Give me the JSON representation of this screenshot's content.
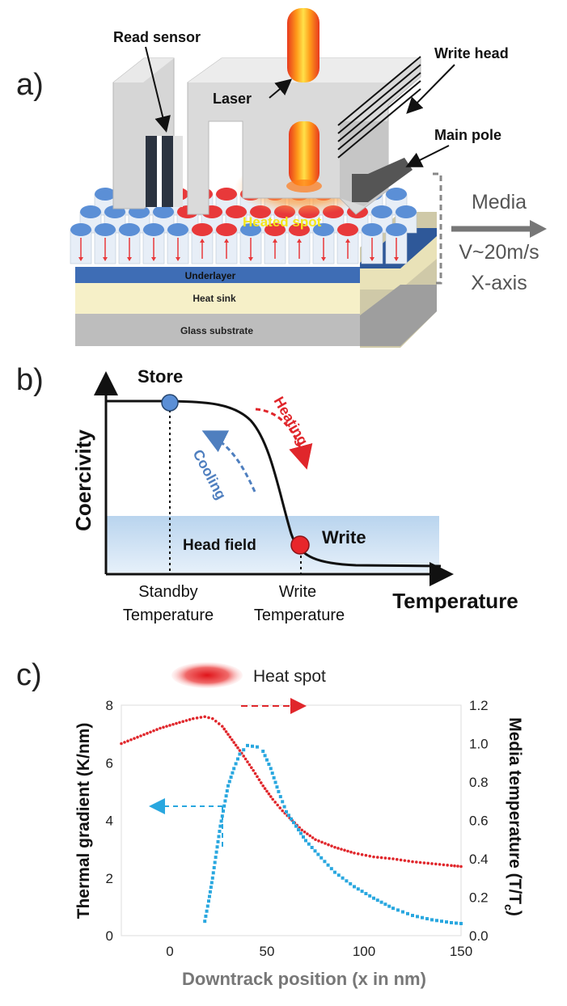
{
  "panel_a": {
    "letter": "a)",
    "read_sensor": "Read sensor",
    "laser": "Laser",
    "write_head": "Write head",
    "main_pole": "Main pole",
    "heated_spot": "Heated spot",
    "underlayer": "Underlayer",
    "heat_sink": "Heat sink",
    "glass_substrate": "Glass substrate",
    "media": "Media",
    "velocity": "V~20m/s",
    "axis": "X-axis",
    "colors": {
      "hot": "#e8393a",
      "cold": "#5b8fd6",
      "underlayer": "#3e6db5",
      "heat_sink": "#f6f0c8",
      "glass": "#bdbdbd"
    }
  },
  "panel_b": {
    "letter": "b)",
    "store": "Store",
    "heating": "Heating",
    "cooling": "Cooling",
    "head_field": "Head field",
    "write": "Write",
    "standby_line1": "Standby",
    "standby_line2": "Temperature",
    "write_temp_line1": "Write",
    "write_temp_line2": "Temperature",
    "xlabel": "Temperature",
    "ylabel": "Coercivity",
    "colors": {
      "heating": "#e0262b",
      "cooling": "#4f7fbf",
      "store_dot": "#5b8fd6",
      "write_dot": "#e8262b",
      "field_band": "#cfe1f3"
    }
  },
  "panel_c": {
    "letter": "c)",
    "legend_label": "Heat spot",
    "chart_data": {
      "type": "scatter",
      "xlabel": "Downtrack position (x in nm)",
      "ylabel": "Thermal gradient (K/nm)",
      "y2label": "Media temperature (T/T",
      "y2label_sub": "c",
      "y2label_close": ")",
      "xlim": [
        -25,
        150
      ],
      "ylim": [
        0,
        8
      ],
      "y2lim": [
        0,
        1.2
      ],
      "x_ticks": [
        "0",
        "50",
        "100",
        "150"
      ],
      "y_ticks": [
        "0",
        "2",
        "4",
        "6",
        "8"
      ],
      "y2_ticks": [
        "0.0",
        "0.2",
        "0.4",
        "0.6",
        "0.8",
        "1.0",
        "1.2"
      ],
      "series": [
        {
          "color": "#e0262b",
          "axis": "right",
          "points": [
            [
              -25,
              1.0
            ],
            [
              -15,
              1.04
            ],
            [
              -5,
              1.08
            ],
            [
              5,
              1.11
            ],
            [
              12,
              1.13
            ],
            [
              18,
              1.14
            ],
            [
              22,
              1.13
            ],
            [
              27,
              1.09
            ],
            [
              32,
              1.02
            ],
            [
              37,
              0.95
            ],
            [
              43,
              0.86
            ],
            [
              48,
              0.78
            ],
            [
              53,
              0.71
            ],
            [
              58,
              0.65
            ],
            [
              63,
              0.6
            ],
            [
              68,
              0.55
            ],
            [
              75,
              0.5
            ],
            [
              85,
              0.46
            ],
            [
              95,
              0.43
            ],
            [
              105,
              0.41
            ],
            [
              115,
              0.4
            ],
            [
              125,
              0.385
            ],
            [
              135,
              0.375
            ],
            [
              145,
              0.365
            ],
            [
              150,
              0.36
            ]
          ]
        },
        {
          "color": "#29a7df",
          "axis": "left",
          "points": [
            [
              18,
              0.5
            ],
            [
              20,
              1.2
            ],
            [
              22,
              2.0
            ],
            [
              24,
              2.9
            ],
            [
              26,
              3.8
            ],
            [
              28,
              4.5
            ],
            [
              30,
              5.2
            ],
            [
              33,
              5.8
            ],
            [
              36,
              6.3
            ],
            [
              40,
              6.6
            ],
            [
              45,
              6.55
            ],
            [
              48,
              6.4
            ],
            [
              52,
              5.8
            ],
            [
              56,
              5.0
            ],
            [
              60,
              4.3
            ],
            [
              65,
              3.8
            ],
            [
              70,
              3.3
            ],
            [
              78,
              2.7
            ],
            [
              85,
              2.2
            ],
            [
              95,
              1.7
            ],
            [
              105,
              1.3
            ],
            [
              115,
              0.95
            ],
            [
              125,
              0.7
            ],
            [
              135,
              0.55
            ],
            [
              145,
              0.45
            ],
            [
              150,
              0.42
            ]
          ]
        }
      ]
    }
  }
}
